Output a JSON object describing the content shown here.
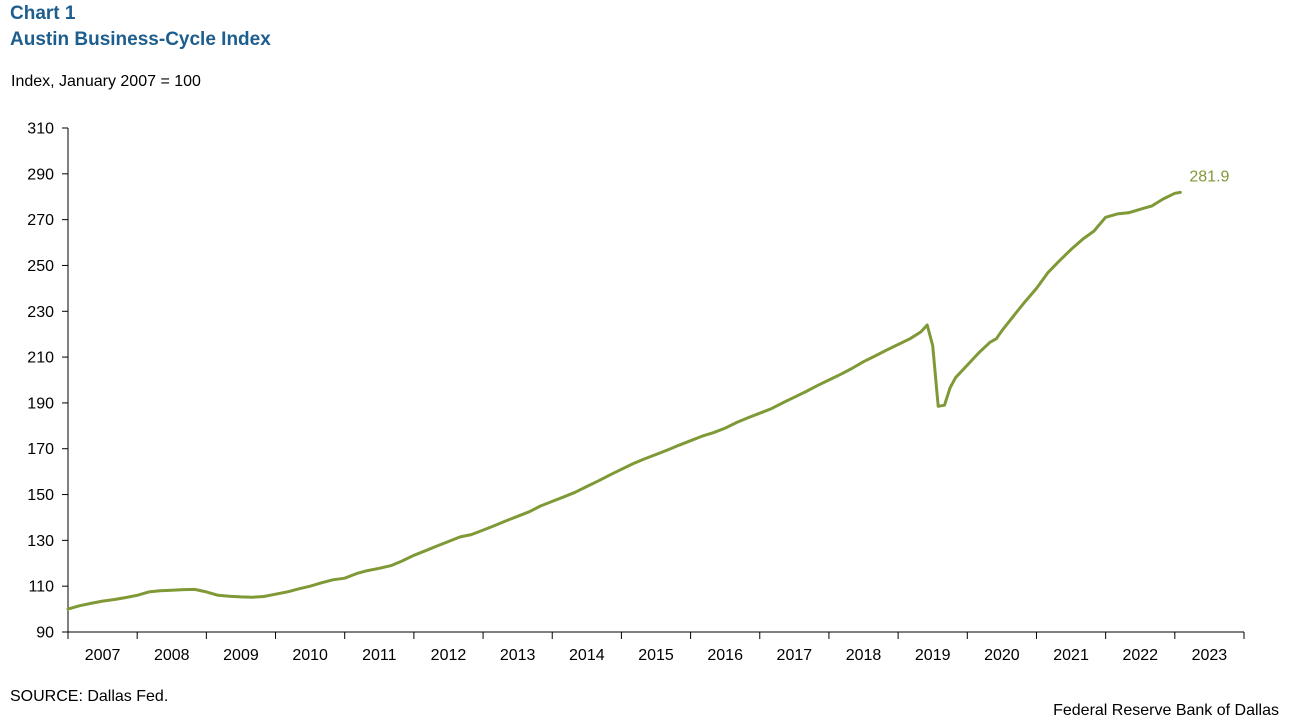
{
  "header": {
    "chart_number": "Chart 1",
    "title": "Austin Business-Cycle Index"
  },
  "axis_note": "Index, January 2007 = 100",
  "footer": {
    "source": "SOURCE: Dallas Fed.",
    "credit": "Federal Reserve Bank of Dallas"
  },
  "colors": {
    "title": "#1d5e8e",
    "series": "#809937",
    "axis": "#000000"
  },
  "chart_data": {
    "type": "line",
    "title": "Austin Business-Cycle Index",
    "ylabel": "Index, January 2007 = 100",
    "xlabel": "",
    "ylim": [
      90,
      310
    ],
    "yticks": [
      90,
      110,
      130,
      150,
      170,
      190,
      210,
      230,
      250,
      270,
      290,
      310
    ],
    "xlim": [
      2007.0,
      2024.0
    ],
    "xtick_labels": [
      "2007",
      "2008",
      "2009",
      "2010",
      "2011",
      "2012",
      "2013",
      "2014",
      "2015",
      "2016",
      "2017",
      "2018",
      "2019",
      "2020",
      "2021",
      "2022",
      "2023"
    ],
    "grid": false,
    "legend": "none",
    "annotation": {
      "text": "281.9",
      "x": 2023.5,
      "y": 281.9
    },
    "series": [
      {
        "values": [
          [
            2007.0,
            100.0
          ],
          [
            2007.17,
            101.5
          ],
          [
            2007.33,
            102.5
          ],
          [
            2007.5,
            103.5
          ],
          [
            2007.67,
            104.2
          ],
          [
            2007.83,
            105.0
          ],
          [
            2008.0,
            106.0
          ],
          [
            2008.17,
            107.5
          ],
          [
            2008.33,
            108.0
          ],
          [
            2008.5,
            108.2
          ],
          [
            2008.67,
            108.5
          ],
          [
            2008.83,
            108.6
          ],
          [
            2009.0,
            107.5
          ],
          [
            2009.17,
            106.0
          ],
          [
            2009.33,
            105.6
          ],
          [
            2009.5,
            105.3
          ],
          [
            2009.67,
            105.2
          ],
          [
            2009.83,
            105.5
          ],
          [
            2010.0,
            106.5
          ],
          [
            2010.17,
            107.5
          ],
          [
            2010.33,
            108.8
          ],
          [
            2010.5,
            110.0
          ],
          [
            2010.67,
            111.5
          ],
          [
            2010.83,
            112.8
          ],
          [
            2011.0,
            113.5
          ],
          [
            2011.17,
            115.5
          ],
          [
            2011.33,
            116.8
          ],
          [
            2011.5,
            117.8
          ],
          [
            2011.67,
            119.0
          ],
          [
            2011.83,
            121.0
          ],
          [
            2012.0,
            123.5
          ],
          [
            2012.17,
            125.5
          ],
          [
            2012.33,
            127.5
          ],
          [
            2012.5,
            129.5
          ],
          [
            2012.67,
            131.5
          ],
          [
            2012.83,
            132.5
          ],
          [
            2013.0,
            134.5
          ],
          [
            2013.17,
            136.5
          ],
          [
            2013.33,
            138.5
          ],
          [
            2013.5,
            140.5
          ],
          [
            2013.67,
            142.5
          ],
          [
            2013.83,
            145.0
          ],
          [
            2014.0,
            147.0
          ],
          [
            2014.17,
            149.0
          ],
          [
            2014.33,
            151.0
          ],
          [
            2014.5,
            153.5
          ],
          [
            2014.67,
            156.0
          ],
          [
            2014.83,
            158.5
          ],
          [
            2015.0,
            161.0
          ],
          [
            2015.17,
            163.5
          ],
          [
            2015.33,
            165.5
          ],
          [
            2015.5,
            167.5
          ],
          [
            2015.67,
            169.5
          ],
          [
            2015.83,
            171.5
          ],
          [
            2016.0,
            173.5
          ],
          [
            2016.17,
            175.5
          ],
          [
            2016.33,
            177.0
          ],
          [
            2016.5,
            179.0
          ],
          [
            2016.67,
            181.5
          ],
          [
            2016.83,
            183.5
          ],
          [
            2017.0,
            185.5
          ],
          [
            2017.17,
            187.5
          ],
          [
            2017.33,
            190.0
          ],
          [
            2017.5,
            192.5
          ],
          [
            2017.67,
            195.0
          ],
          [
            2017.83,
            197.5
          ],
          [
            2018.0,
            200.0
          ],
          [
            2018.17,
            202.5
          ],
          [
            2018.33,
            205.0
          ],
          [
            2018.5,
            208.0
          ],
          [
            2018.67,
            210.5
          ],
          [
            2018.83,
            213.0
          ],
          [
            2019.0,
            215.5
          ],
          [
            2019.17,
            218.0
          ],
          [
            2019.33,
            221.0
          ],
          [
            2019.42,
            224.0
          ],
          [
            2019.5,
            215.0
          ],
          [
            2019.58,
            188.5
          ],
          [
            2019.67,
            189.0
          ],
          [
            2019.75,
            196.5
          ],
          [
            2019.83,
            201.0
          ],
          [
            2020.0,
            206.5
          ],
          [
            2020.17,
            212.0
          ],
          [
            2020.33,
            216.5
          ],
          [
            2020.42,
            218.0
          ],
          [
            2020.5,
            221.5
          ],
          [
            2020.67,
            228.0
          ],
          [
            2020.83,
            234.0
          ],
          [
            2021.0,
            240.0
          ],
          [
            2021.17,
            247.0
          ],
          [
            2021.33,
            252.0
          ],
          [
            2021.5,
            257.0
          ],
          [
            2021.67,
            261.5
          ],
          [
            2021.83,
            265.0
          ],
          [
            2022.0,
            271.0
          ],
          [
            2022.17,
            272.5
          ],
          [
            2022.33,
            273.0
          ],
          [
            2022.5,
            274.5
          ],
          [
            2022.67,
            276.0
          ],
          [
            2022.83,
            279.0
          ],
          [
            2023.0,
            281.5
          ],
          [
            2023.08,
            281.9
          ]
        ]
      }
    ]
  }
}
